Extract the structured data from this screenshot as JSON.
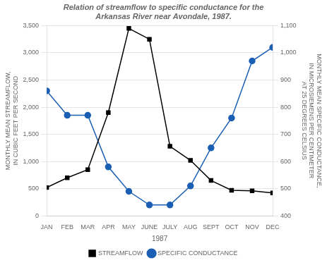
{
  "chart_data": {
    "type": "line",
    "title": "Relation of streamflow to specific conductance for the\nArkansas River near Avondale, 1987.",
    "x_label": "1987",
    "y_label": "MONTHLY MEAN STREAMFLOW,\nIN CUBIC FEET PER SECOND",
    "y2_label": "MONTHLY MEAN SPECIFIC CONDUCTANCE,\nIN MICROSIEMENS PER CENTIMETER\nAT 25 DEGREES CELSIUS",
    "categories": [
      "JAN",
      "FEB",
      "MAR",
      "APR",
      "MAY",
      "JUNE",
      "JULY",
      "AUG",
      "SEPT",
      "OCT",
      "NOV",
      "DEC"
    ],
    "series": [
      {
        "name": "STREAMFLOW",
        "color": "#000000",
        "marker": "square",
        "values": [
          520,
          700,
          850,
          1900,
          3450,
          3250,
          1280,
          1020,
          650,
          470,
          460,
          420
        ]
      },
      {
        "name": "SPECIFIC CONDUCTANCE",
        "color": "#1a5fb4",
        "marker": "circle",
        "axis": "y2",
        "values": [
          860,
          770,
          770,
          580,
          490,
          440,
          440,
          510,
          650,
          760,
          970,
          1020
        ]
      }
    ],
    "ylim": [
      0,
      3500
    ],
    "yticks": [
      0,
      500,
      {
        "value": 1000,
        "label": "1,000"
      },
      {
        "value": 1500,
        "label": "1,500"
      },
      {
        "value": 2000,
        "label": "2,000"
      },
      {
        "value": 2500,
        "label": "2,500"
      },
      {
        "value": 3000,
        "label": "3,000"
      },
      {
        "value": 3500,
        "label": "3,500"
      }
    ],
    "y2lim": [
      400,
      1100
    ],
    "y2ticks": [
      400,
      500,
      600,
      700,
      800,
      900,
      {
        "value": 1000,
        "label": "1,000"
      },
      {
        "value": 1100,
        "label": "1,100"
      }
    ],
    "grid": true,
    "legend": "bottom"
  }
}
